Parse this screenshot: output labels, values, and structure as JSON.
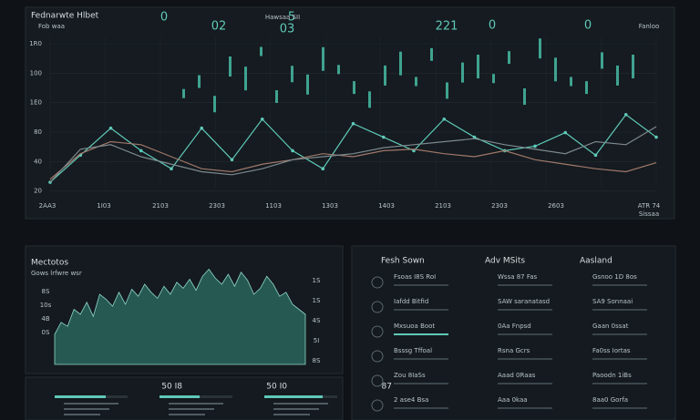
{
  "header": {
    "title": "Fednarwte Hlbet",
    "sub": "Fob waa",
    "stats": [
      "0",
      "02",
      "5",
      "Hawsaa SII",
      "03",
      "221",
      "0",
      "0",
      "Fanloo"
    ]
  },
  "main_chart": {
    "y_labels": [
      "1R0",
      "100",
      "1E0",
      "80",
      "40",
      "20"
    ],
    "x_labels": [
      "2AA3",
      "1I03",
      "2103",
      "2303",
      "1103",
      "1303",
      "1403",
      "2103",
      "2303",
      "2603"
    ],
    "right_labels": [
      "ATR 74",
      "Sissaa"
    ],
    "series": [
      {
        "color": "#5fc9b8",
        "values": [
          3,
          21,
          39,
          24,
          12,
          39,
          18,
          45,
          24,
          12,
          42,
          33,
          24,
          45,
          33,
          24,
          27,
          36,
          21,
          48,
          33
        ]
      },
      {
        "color": "#a0786a",
        "values": [
          5,
          22,
          30,
          28,
          20,
          12,
          10,
          15,
          18,
          22,
          20,
          24,
          25,
          22,
          20,
          24,
          18,
          15,
          12,
          10,
          16
        ]
      },
      {
        "color": "#7d8a8e",
        "values": [
          3,
          25,
          28,
          20,
          15,
          10,
          8,
          12,
          18,
          20,
          22,
          26,
          28,
          30,
          32,
          28,
          25,
          22,
          30,
          28,
          40
        ]
      }
    ],
    "bars": [
      62,
      70,
      55,
      80,
      72,
      90,
      60,
      75,
      68,
      85,
      78,
      66,
      58,
      74,
      82,
      70,
      88,
      64,
      76,
      80,
      72,
      86,
      60,
      92,
      78,
      70,
      66,
      84,
      74,
      80
    ]
  },
  "area_panel": {
    "title": "Mectotos",
    "subtitle": "Gows lrfwre wsr",
    "left_labels": [
      "8S",
      "10s",
      "4B",
      "0S"
    ],
    "right_labels": [
      "1S",
      "1S",
      "4S",
      "5I",
      "8S"
    ],
    "values": [
      30,
      42,
      38,
      55,
      50,
      62,
      48,
      70,
      65,
      58,
      72,
      60,
      75,
      68,
      80,
      72,
      66,
      78,
      70,
      82,
      76,
      85,
      74,
      88,
      95,
      86,
      80,
      90,
      78,
      92,
      84,
      70,
      76,
      88,
      80,
      68,
      72,
      60,
      55,
      50
    ]
  },
  "gauges": [
    {
      "label": "50 I8",
      "value": 70
    },
    {
      "label": "50 I0",
      "value": 55
    },
    {
      "label": "87",
      "value": 80
    }
  ],
  "list_panel": {
    "columns": [
      "Fesh Sown",
      "Adv MSits",
      "Aasland"
    ],
    "rows": [
      [
        "Fsoas I8S RoI",
        "Wssa 87 Fas",
        "Gsnoo 1D 8os"
      ],
      [
        "Iafdd Bitfid",
        "SAW saranatasd",
        "SA9 Sonnaai"
      ],
      [
        "Mxsuoa Boot",
        "0Aa Fnpsd",
        "Gaan 0ssat"
      ],
      [
        "Bsssg Tffoal",
        "Rsna Gcrs",
        "Fa0ss Iortas"
      ],
      [
        "Zou 8IaSs",
        "Aaad 0Raas",
        "Paoodn 1iBs"
      ],
      [
        "2 ase4 Bsa",
        "Aaa 0kaa",
        "8aa0 Gorfa"
      ]
    ]
  }
}
